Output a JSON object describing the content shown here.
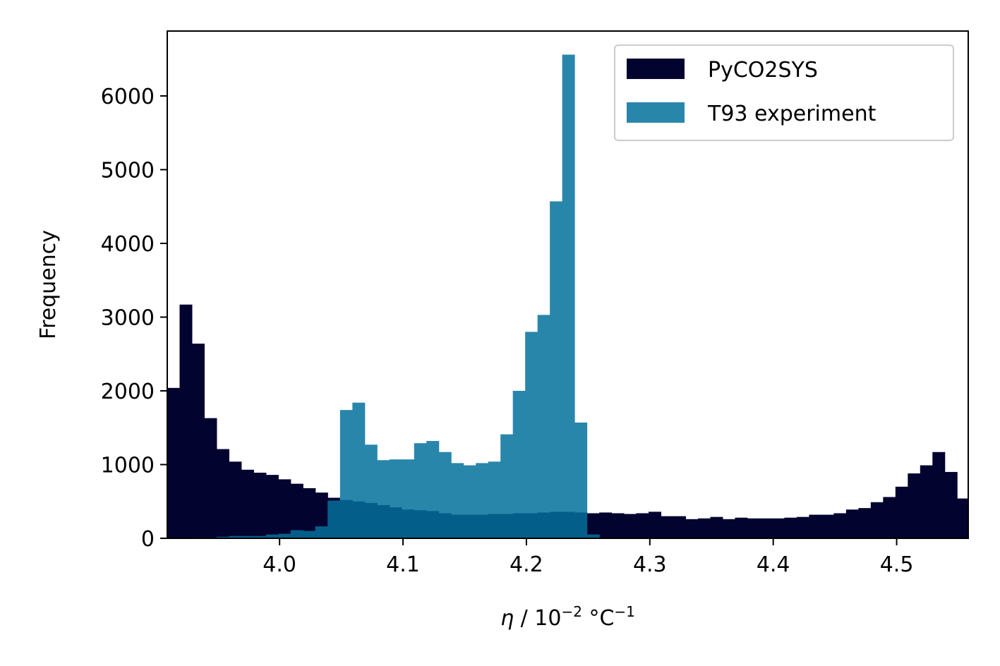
{
  "chart_data": {
    "type": "bar",
    "subtype": "overlapping-histogram",
    "xlabel_parts": [
      "η",
      " / 10",
      "−2",
      " °C",
      "−1"
    ],
    "ylabel": "Frequency",
    "xlim": [
      3.909,
      4.558
    ],
    "ylim": [
      0,
      6880
    ],
    "xticks": [
      4.0,
      4.1,
      4.2,
      4.3,
      4.4,
      4.5
    ],
    "xtick_labels": [
      "4.0",
      "4.1",
      "4.2",
      "4.3",
      "4.4",
      "4.5"
    ],
    "yticks": [
      0,
      1000,
      2000,
      3000,
      4000,
      5000,
      6000
    ],
    "ytick_labels": [
      "0",
      "1000",
      "2000",
      "3000",
      "4000",
      "5000",
      "6000"
    ],
    "grid": false,
    "legend_position": "upper right",
    "series": [
      {
        "name": "PyCO2SYS",
        "color": "#03032f",
        "alpha": 1.0,
        "bin_start": 3.909,
        "bin_width": 0.01,
        "values": [
          2040,
          3170,
          2640,
          1630,
          1210,
          1040,
          930,
          890,
          860,
          800,
          740,
          680,
          620,
          550,
          520,
          500,
          480,
          450,
          420,
          390,
          380,
          370,
          340,
          320,
          320,
          320,
          330,
          330,
          340,
          340,
          350,
          360,
          360,
          350,
          340,
          350,
          340,
          330,
          340,
          360,
          300,
          300,
          260,
          270,
          290,
          260,
          280,
          270,
          270,
          270,
          280,
          290,
          320,
          320,
          340,
          390,
          410,
          490,
          560,
          700,
          880,
          990,
          1170,
          900,
          540
        ]
      },
      {
        "name": "T93 experiment",
        "color": "#2986ab",
        "alpha": 1.0,
        "bin_start": 3.909,
        "bin_width": 0.01,
        "values": [
          0,
          0,
          10,
          10,
          20,
          30,
          30,
          30,
          50,
          60,
          110,
          100,
          160,
          510,
          1740,
          1840,
          1270,
          1060,
          1070,
          1070,
          1290,
          1320,
          1170,
          1020,
          990,
          1020,
          1040,
          1410,
          2000,
          2800,
          3030,
          4570,
          6560,
          1570,
          50,
          0,
          0,
          0,
          0,
          0,
          0,
          0,
          0,
          0,
          0,
          0,
          0,
          0,
          0,
          0,
          0,
          0,
          0,
          0,
          0,
          0,
          0,
          0,
          0,
          0,
          0,
          0,
          0,
          0,
          0
        ]
      }
    ],
    "overlap_color": "#035f8a"
  }
}
